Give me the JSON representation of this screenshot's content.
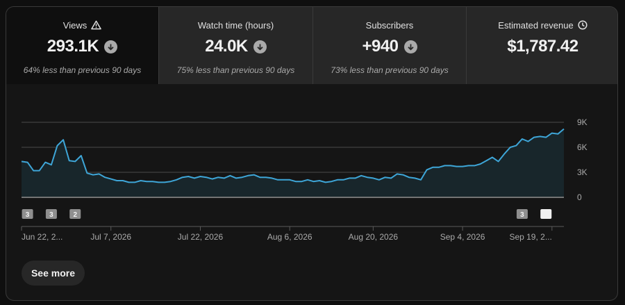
{
  "metrics": [
    {
      "label": "Views",
      "label_icon": "warning-icon",
      "value": "293.1K",
      "trend_icon": "arrow-down-circle-icon",
      "sub": "64% less than previous 90 days"
    },
    {
      "label": "Watch time (hours)",
      "value": "24.0K",
      "trend_icon": "arrow-down-circle-icon",
      "sub": "75% less than previous 90 days"
    },
    {
      "label": "Subscribers",
      "value": "+940",
      "trend_icon": "arrow-down-circle-icon",
      "sub": "73% less than previous 90 days"
    },
    {
      "label": "Estimated revenue",
      "label_icon": "clock-icon",
      "value": "$1,787.42"
    }
  ],
  "see_more_label": "See more",
  "colors": {
    "line": "#3ea6d8",
    "area": "#18262b",
    "accent_bg": "#0f0f0f"
  },
  "chart_data": {
    "type": "area",
    "x_start": "Jun 22, 2026",
    "xtick_labels": [
      "Jun 22, 2...",
      "Jul 7, 2026",
      "Jul 22, 2026",
      "Aug 6, 2026",
      "Aug 20, 2026",
      "Sep 4, 2026",
      "Sep 19, 2..."
    ],
    "ytick_labels": [
      "9K",
      "6K",
      "3K",
      "0"
    ],
    "ylim": [
      0,
      9000
    ],
    "grid": true,
    "series": [
      {
        "values": [
          4300,
          4200,
          3200,
          3200,
          4200,
          3900,
          6200,
          6900,
          4400,
          4300,
          5000,
          2900,
          2700,
          2800,
          2400,
          2200,
          2000,
          2000,
          1800,
          1800,
          2000,
          1900,
          1900,
          1800,
          1800,
          1900,
          2100,
          2400,
          2500,
          2300,
          2500,
          2400,
          2200,
          2400,
          2300,
          2600,
          2300,
          2400,
          2600,
          2700,
          2400,
          2400,
          2300,
          2100,
          2100,
          2100,
          1900,
          1900,
          2100,
          1900,
          2000,
          1800,
          1900,
          2100,
          2100,
          2300,
          2300,
          2600,
          2400,
          2300,
          2100,
          2400,
          2300,
          2800,
          2700,
          2400,
          2300,
          2100,
          3300,
          3600,
          3600,
          3800,
          3800,
          3700,
          3700,
          3800,
          3800,
          4000,
          4400,
          4800,
          4300,
          5200,
          6000,
          6200,
          7000,
          6700,
          7200,
          7300,
          7200,
          7700,
          7600,
          8200
        ]
      }
    ],
    "annotations": [
      {
        "date": "Jun 23, 2026",
        "label": "3"
      },
      {
        "date": "Jun 27, 2026",
        "label": "3"
      },
      {
        "date": "Jul 1, 2026",
        "label": "2"
      },
      {
        "date": "Sep 14, 2026",
        "label": "3"
      },
      {
        "date": "Sep 18, 2026",
        "label": ""
      }
    ]
  }
}
